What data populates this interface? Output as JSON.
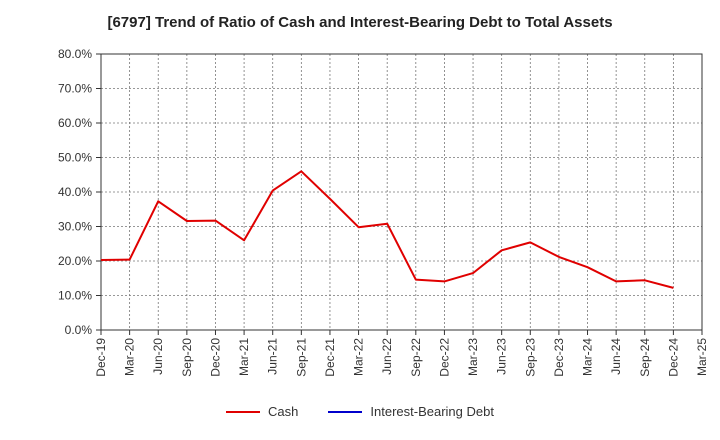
{
  "chart_data": {
    "type": "line",
    "title": "[6797]  Trend of Ratio of Cash and Interest-Bearing Debt to Total Assets",
    "xlabel": "",
    "ylabel": "",
    "ylim": [
      0,
      80
    ],
    "y_tick_values": [
      0,
      10,
      20,
      30,
      40,
      50,
      60,
      70,
      80
    ],
    "y_tick_labels": [
      "0.0%",
      "10.0%",
      "20.0%",
      "30.0%",
      "40.0%",
      "50.0%",
      "60.0%",
      "70.0%",
      "80.0%"
    ],
    "categories": [
      "Dec-19",
      "Mar-20",
      "Jun-20",
      "Sep-20",
      "Dec-20",
      "Mar-21",
      "Jun-21",
      "Sep-21",
      "Dec-21",
      "Mar-22",
      "Jun-22",
      "Sep-22",
      "Dec-22",
      "Mar-23",
      "Jun-23",
      "Sep-23",
      "Dec-23",
      "Mar-24",
      "Jun-24",
      "Sep-24",
      "Dec-24",
      "Mar-25"
    ],
    "grid": true,
    "legend_position": "bottom",
    "series": [
      {
        "name": "Cash",
        "color": "#e00000",
        "values": [
          20.3,
          20.4,
          37.3,
          31.6,
          31.7,
          26.0,
          40.4,
          46.0,
          38.0,
          29.8,
          30.8,
          14.6,
          14.1,
          16.5,
          23.1,
          25.4,
          21.2,
          18.2,
          14.1,
          14.4,
          12.2,
          null
        ]
      },
      {
        "name": "Interest-Bearing Debt",
        "color": "#0000cc",
        "values": [
          null,
          null,
          null,
          null,
          null,
          null,
          null,
          null,
          null,
          null,
          null,
          null,
          null,
          null,
          null,
          null,
          null,
          null,
          null,
          null,
          null,
          null
        ]
      }
    ]
  }
}
